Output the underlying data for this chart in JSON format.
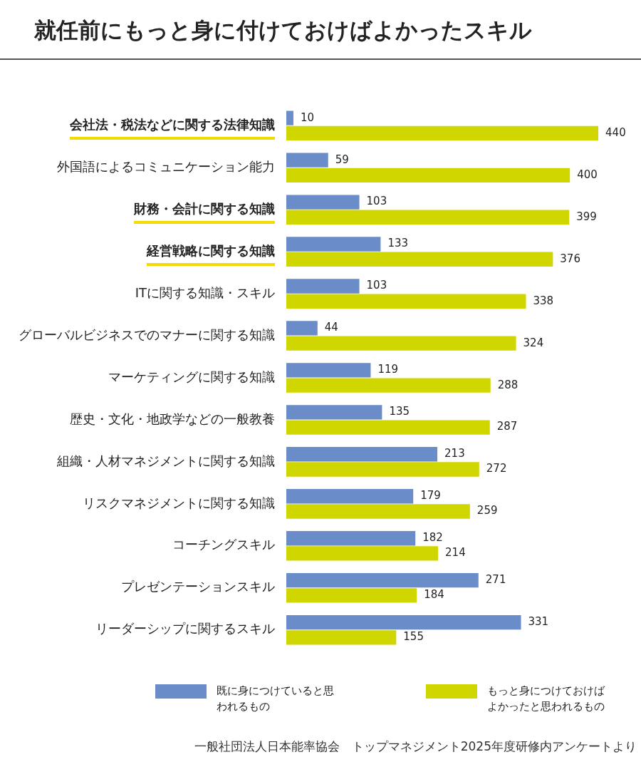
{
  "chart_data": {
    "type": "bar",
    "orientation": "horizontal",
    "title": "就任前にもっと身に付けておけばよかったスキル",
    "categories": [
      "会社法・税法などに関する法律知識",
      "外国語によるコミュニケーション能力",
      "財務・会計に関する知識",
      "経営戦略に関する知識",
      "ITに関する知識・スキル",
      "グローバルビジネスでのマナーに関する知識",
      "マーケティングに関する知識",
      "歴史・文化・地政学などの一般教養",
      "組織・人材マネジメントに関する知識",
      "リスクマネジメントに関する知識",
      "コーチングスキル",
      "プレゼンテーションスキル",
      "リーダーシップに関するスキル"
    ],
    "series": [
      {
        "name": "既に身につけていると思われるもの",
        "color": "#6a8cc8",
        "values": [
          10,
          59,
          103,
          133,
          103,
          44,
          119,
          135,
          213,
          179,
          182,
          271,
          331
        ]
      },
      {
        "name": "もっと身につけておけばよかったと思われるもの",
        "color": "#cfd600",
        "values": [
          440,
          400,
          399,
          376,
          338,
          324,
          288,
          287,
          272,
          259,
          214,
          184,
          155
        ]
      }
    ],
    "data_labels": true,
    "grid": false,
    "legend": "bottom",
    "tick_labels": "y",
    "annotations": [
      "一般社団法人日本能率協会　トップマネジメント2025年度研修内アンケートより"
    ]
  }
}
